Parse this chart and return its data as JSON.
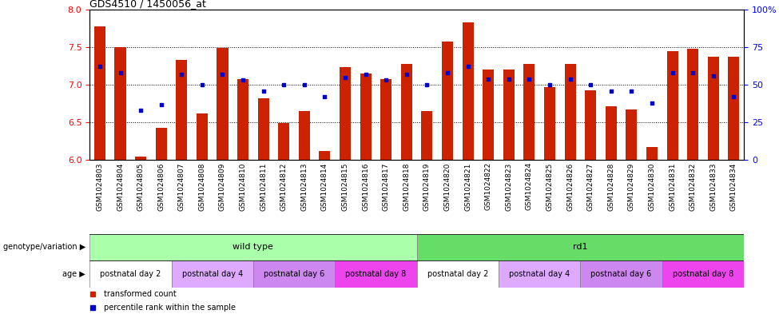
{
  "title": "GDS4510 / 1450056_at",
  "samples": [
    "GSM1024803",
    "GSM1024804",
    "GSM1024805",
    "GSM1024806",
    "GSM1024807",
    "GSM1024808",
    "GSM1024809",
    "GSM1024810",
    "GSM1024811",
    "GSM1024812",
    "GSM1024813",
    "GSM1024814",
    "GSM1024815",
    "GSM1024816",
    "GSM1024817",
    "GSM1024818",
    "GSM1024819",
    "GSM1024820",
    "GSM1024821",
    "GSM1024822",
    "GSM1024823",
    "GSM1024824",
    "GSM1024825",
    "GSM1024826",
    "GSM1024827",
    "GSM1024828",
    "GSM1024829",
    "GSM1024830",
    "GSM1024831",
    "GSM1024832",
    "GSM1024833",
    "GSM1024834"
  ],
  "bar_values": [
    7.78,
    7.5,
    6.05,
    6.43,
    7.33,
    6.62,
    7.49,
    7.08,
    6.82,
    6.49,
    6.65,
    6.12,
    7.23,
    7.15,
    7.08,
    7.28,
    6.65,
    7.57,
    7.83,
    7.2,
    7.2,
    7.28,
    6.97,
    7.28,
    6.93,
    6.72,
    6.67,
    6.17,
    7.45,
    7.48,
    7.37,
    7.37
  ],
  "dot_values": [
    62,
    58,
    33,
    37,
    57,
    50,
    57,
    53,
    46,
    50,
    50,
    42,
    55,
    57,
    53,
    57,
    50,
    58,
    62,
    54,
    54,
    54,
    50,
    54,
    50,
    46,
    46,
    38,
    58,
    58,
    56,
    42
  ],
  "y_min": 6.0,
  "y_max": 8.0,
  "y_ticks": [
    6.0,
    6.5,
    7.0,
    7.5,
    8.0
  ],
  "y2_ticks": [
    0,
    25,
    50,
    75,
    100
  ],
  "bar_color": "#CC2200",
  "dot_color": "#0000CC",
  "bar_bottom": 6.0,
  "genotype_groups": [
    {
      "label": "wild type",
      "start": 0,
      "end": 16,
      "color": "#AAFFAA"
    },
    {
      "label": "rd1",
      "start": 16,
      "end": 32,
      "color": "#66DD66"
    }
  ],
  "age_colors": [
    "#FFFFFF",
    "#DDAAFF",
    "#CC88EE",
    "#EE44EE",
    "#FFFFFF",
    "#DDAAFF",
    "#CC88EE",
    "#EE44EE"
  ],
  "age_labels": [
    "postnatal day 2",
    "postnatal day 4",
    "postnatal day 6",
    "postnatal day 8",
    "postnatal day 2",
    "postnatal day 4",
    "postnatal day 6",
    "postnatal day 8"
  ],
  "age_starts": [
    0,
    4,
    8,
    12,
    16,
    20,
    24,
    28
  ],
  "age_ends": [
    4,
    8,
    12,
    16,
    20,
    24,
    28,
    32
  ]
}
